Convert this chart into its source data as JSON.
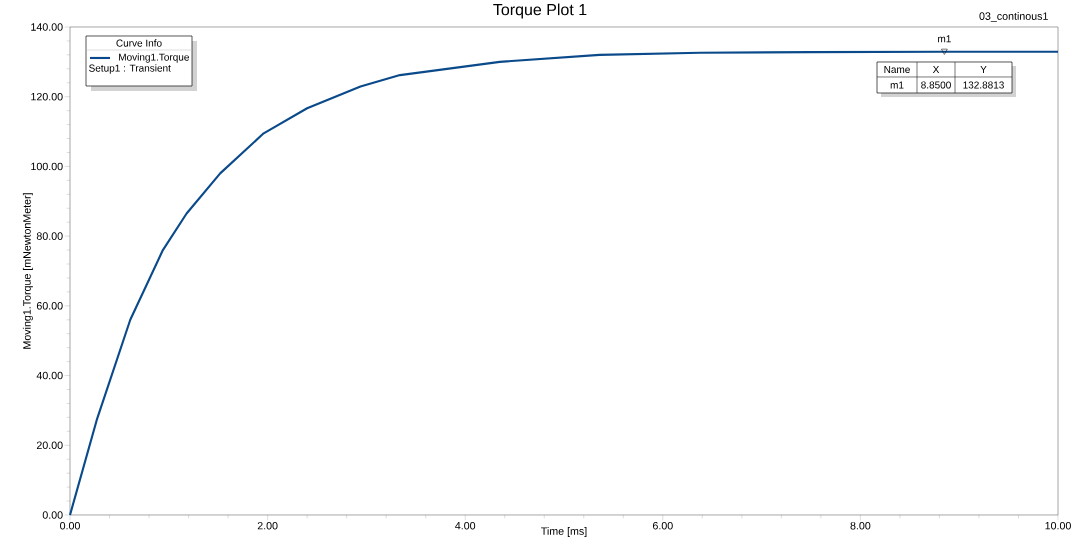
{
  "chart_data": {
    "type": "line",
    "title": "Torque Plot 1",
    "xlabel": "Time [ms]",
    "ylabel": "Moving1.Torque [mNewtonMeter]",
    "legend_title": "Curve Info",
    "legend": "top left",
    "x": [
      0,
      0.27,
      0.61,
      0.94,
      1.18,
      1.52,
      1.96,
      2.4,
      2.94,
      3.34,
      4.35,
      5.36,
      6.38,
      7.5,
      8.85,
      10
    ],
    "series": [
      {
        "name": "Moving1.Torque",
        "color": "#0a4a8a",
        "values": [
          0,
          27.2,
          56,
          76,
          86.5,
          98,
          109.5,
          116.7,
          122.9,
          126.2,
          130,
          132,
          132.6,
          132.8,
          132.9,
          132.9
        ]
      }
    ],
    "xlim": [
      0,
      10
    ],
    "ylim": [
      0,
      140
    ],
    "xticks": [
      {
        "value": 0,
        "label": "0.00"
      },
      {
        "value": 2,
        "label": "2.00"
      },
      {
        "value": 4,
        "label": "4.00"
      },
      {
        "value": 6,
        "label": "6.00"
      },
      {
        "value": 8,
        "label": "8.00"
      },
      {
        "value": 10,
        "label": "10.00"
      }
    ],
    "yticks": [
      {
        "value": 0,
        "label": "0.00"
      },
      {
        "value": 20,
        "label": "20.00"
      },
      {
        "value": 40,
        "label": "40.00"
      },
      {
        "value": 60,
        "label": "60.00"
      },
      {
        "value": 80,
        "label": "80.00"
      },
      {
        "value": 100,
        "label": "100.00"
      },
      {
        "value": 120,
        "label": "120.00"
      },
      {
        "value": 140,
        "label": "140.00"
      }
    ],
    "grid": false,
    "marker": "none",
    "line_style": "solid",
    "annotations": [
      "Setup1 : Transient",
      "03_continous1",
      {
        "text": "m1",
        "x": 8.85,
        "y": 132.8813
      },
      "Name",
      "X",
      "Y",
      "m1",
      "8.8500",
      "132.8813"
    ]
  }
}
